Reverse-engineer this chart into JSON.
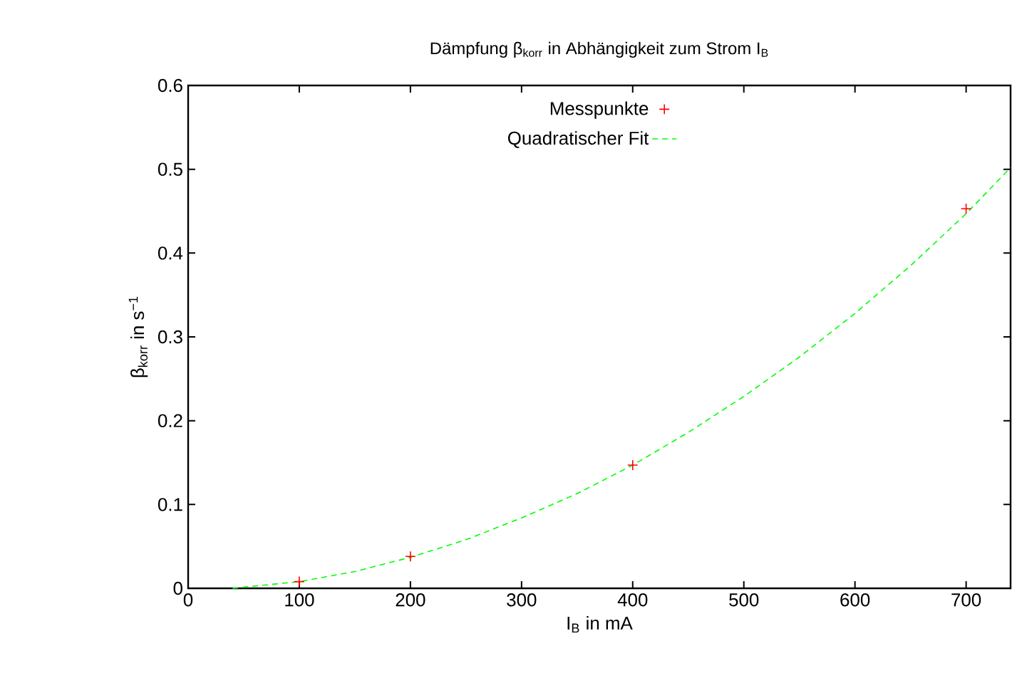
{
  "chart_data": {
    "type": "scatter",
    "title": "Dämpfung β$_{korr}$ in Abhängigkeit zum Strom I$_{B}$",
    "xlabel": "I$_{B}$ in mA",
    "ylabel": "β$_{korr}$ in s$^{−1}$",
    "xlim": [
      0,
      740
    ],
    "ylim": [
      0,
      0.6
    ],
    "xticks": [
      0,
      100,
      200,
      300,
      400,
      500,
      600,
      700
    ],
    "yticks": [
      0,
      0.1,
      0.2,
      0.3,
      0.4,
      0.5,
      0.6
    ],
    "grid": false,
    "legend": "top",
    "series": [
      {
        "name": "Messpunkte",
        "marker": "cross",
        "color": "#ff0000",
        "x": [
          100,
          200,
          400,
          700
        ],
        "values": [
          0.008,
          0.038,
          0.147,
          0.453
        ]
      },
      {
        "name": "Quadratischer Fit",
        "type": "line",
        "marker": "none",
        "line_style": "dashed",
        "color": "#00ff00",
        "x": [
          40,
          100,
          150,
          200,
          250,
          300,
          350,
          400,
          450,
          500,
          550,
          600,
          650,
          700,
          740
        ],
        "values": [
          0,
          0.008,
          0.02,
          0.037,
          0.058,
          0.084,
          0.113,
          0.147,
          0.186,
          0.229,
          0.276,
          0.328,
          0.385,
          0.447,
          0.502
        ]
      }
    ]
  }
}
